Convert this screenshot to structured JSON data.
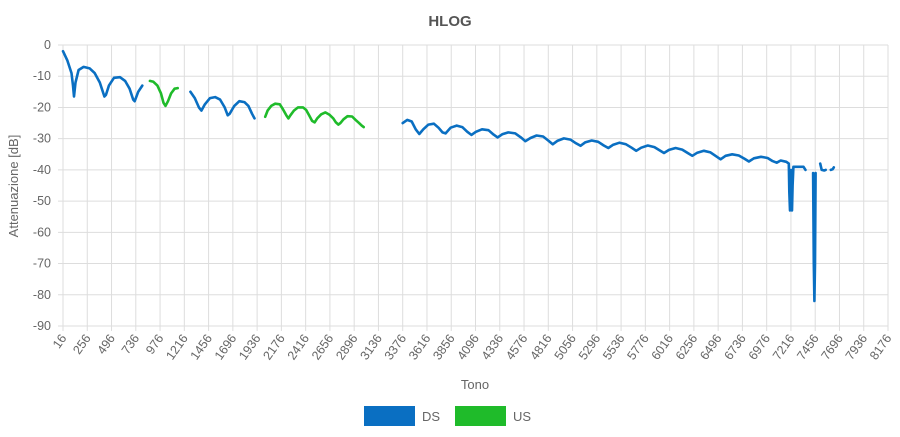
{
  "chart_data": {
    "type": "line",
    "title": "HLOG",
    "xlabel": "Tono",
    "ylabel": "Attenuazione [dB]",
    "xlim": [
      16,
      8176
    ],
    "ylim": [
      -90,
      0
    ],
    "x_ticks": [
      "16",
      "256",
      "496",
      "736",
      "976",
      "1216",
      "1456",
      "1696",
      "1936",
      "2176",
      "2416",
      "2656",
      "2896",
      "3136",
      "3376",
      "3616",
      "3856",
      "4096",
      "4336",
      "4576",
      "4816",
      "5056",
      "5296",
      "5536",
      "5776",
      "6016",
      "6256",
      "6496",
      "6736",
      "6976",
      "7216",
      "7456",
      "7696",
      "7936",
      "8176"
    ],
    "y_ticks": [
      "0",
      "-10",
      "-20",
      "-30",
      "-40",
      "-50",
      "-60",
      "-70",
      "-80",
      "-90"
    ],
    "grid": true,
    "legend_position": "bottom",
    "series": [
      {
        "name": "DS",
        "color": "#0a6fc2",
        "segments": [
          [
            [
              16,
              -2
            ],
            [
              60,
              -5
            ],
            [
              100,
              -9
            ],
            [
              115,
              -13
            ],
            [
              125,
              -16.5
            ],
            [
              140,
              -12
            ],
            [
              170,
              -8
            ],
            [
              220,
              -7
            ],
            [
              280,
              -7.5
            ],
            [
              330,
              -9
            ],
            [
              380,
              -12
            ],
            [
              425,
              -16.5
            ],
            [
              440,
              -16
            ],
            [
              470,
              -13
            ],
            [
              520,
              -10.5
            ],
            [
              580,
              -10.3
            ],
            [
              630,
              -11.5
            ],
            [
              675,
              -14
            ],
            [
              710,
              -17.5
            ],
            [
              725,
              -18
            ],
            [
              760,
              -15
            ],
            [
              800,
              -13
            ]
          ],
          [
            [
              1276,
              -15
            ],
            [
              1320,
              -17
            ],
            [
              1360,
              -20
            ],
            [
              1385,
              -21
            ],
            [
              1420,
              -19
            ],
            [
              1470,
              -17
            ],
            [
              1520,
              -16.7
            ],
            [
              1570,
              -17.5
            ],
            [
              1615,
              -20
            ],
            [
              1645,
              -22.5
            ],
            [
              1665,
              -22
            ],
            [
              1710,
              -19.5
            ],
            [
              1760,
              -18
            ],
            [
              1810,
              -18.3
            ],
            [
              1850,
              -19.5
            ],
            [
              1885,
              -22
            ],
            [
              1910,
              -23.5
            ]
          ],
          [
            [
              3376,
              -25
            ],
            [
              3420,
              -24
            ],
            [
              3465,
              -24.5
            ],
            [
              3505,
              -27
            ],
            [
              3540,
              -28.5
            ],
            [
              3580,
              -27
            ],
            [
              3630,
              -25.5
            ],
            [
              3685,
              -25.2
            ],
            [
              3730,
              -26.5
            ],
            [
              3770,
              -28
            ],
            [
              3800,
              -28.3
            ],
            [
              3850,
              -26.5
            ],
            [
              3910,
              -25.8
            ],
            [
              3965,
              -26.3
            ],
            [
              4015,
              -27.8
            ],
            [
              4055,
              -28.8
            ],
            [
              4100,
              -27.8
            ],
            [
              4160,
              -27
            ],
            [
              4225,
              -27.3
            ],
            [
              4275,
              -28.7
            ],
            [
              4315,
              -29.6
            ],
            [
              4360,
              -28.6
            ],
            [
              4420,
              -28
            ],
            [
              4490,
              -28.3
            ],
            [
              4545,
              -29.6
            ],
            [
              4590,
              -30.8
            ],
            [
              4640,
              -29.8
            ],
            [
              4700,
              -29
            ],
            [
              4765,
              -29.3
            ],
            [
              4815,
              -30.6
            ],
            [
              4860,
              -31.8
            ],
            [
              4905,
              -30.7
            ],
            [
              4970,
              -29.9
            ],
            [
              5035,
              -30.3
            ],
            [
              5090,
              -31.5
            ],
            [
              5135,
              -32.3
            ],
            [
              5180,
              -31.2
            ],
            [
              5245,
              -30.6
            ],
            [
              5310,
              -31
            ],
            [
              5365,
              -32.2
            ],
            [
              5410,
              -33
            ],
            [
              5455,
              -32
            ],
            [
              5520,
              -31.3
            ],
            [
              5585,
              -31.8
            ],
            [
              5640,
              -32.9
            ],
            [
              5685,
              -33.9
            ],
            [
              5735,
              -32.9
            ],
            [
              5800,
              -32.2
            ],
            [
              5865,
              -32.7
            ],
            [
              5920,
              -33.8
            ],
            [
              5960,
              -34.6
            ],
            [
              6010,
              -33.6
            ],
            [
              6075,
              -33
            ],
            [
              6140,
              -33.5
            ],
            [
              6195,
              -34.6
            ],
            [
              6240,
              -35.5
            ],
            [
              6290,
              -34.5
            ],
            [
              6355,
              -33.9
            ],
            [
              6420,
              -34.4
            ],
            [
              6475,
              -35.6
            ],
            [
              6520,
              -36.6
            ],
            [
              6570,
              -35.5
            ],
            [
              6635,
              -35
            ],
            [
              6700,
              -35.4
            ],
            [
              6755,
              -36.4
            ],
            [
              6800,
              -37.3
            ],
            [
              6850,
              -36.3
            ],
            [
              6920,
              -35.8
            ],
            [
              6985,
              -36.2
            ],
            [
              7035,
              -37.2
            ],
            [
              7075,
              -37.7
            ],
            [
              7115,
              -37
            ],
            [
              7170,
              -37.4
            ],
            [
              7195,
              -38
            ],
            [
              7200,
              -47
            ],
            [
              7207,
              -53
            ],
            [
              7213,
              -48
            ],
            [
              7218,
              -40
            ],
            [
              7222,
              -50
            ],
            [
              7226,
              -53
            ],
            [
              7232,
              -45
            ],
            [
              7240,
              -39
            ],
            [
              7300,
              -39
            ],
            [
              7340,
              -39
            ],
            [
              7360,
              -40
            ]
          ],
          [
            [
              7435,
              -41
            ],
            [
              7442,
              -70
            ],
            [
              7448,
              -82
            ],
            [
              7454,
              -70
            ],
            [
              7460,
              -41
            ]
          ],
          [
            [
              7505,
              -38
            ],
            [
              7520,
              -40
            ],
            [
              7545,
              -40.2
            ],
            [
              7560,
              -40
            ]
          ],
          [
            [
              7610,
              -40
            ],
            [
              7628,
              -39.8
            ],
            [
              7640,
              -39.2
            ]
          ]
        ]
      },
      {
        "name": "US",
        "color": "#1fbb2a",
        "segments": [
          [
            [
              876,
              -11.5
            ],
            [
              910,
              -11.8
            ],
            [
              950,
              -13
            ],
            [
              985,
              -15.5
            ],
            [
              1010,
              -18.5
            ],
            [
              1030,
              -19.5
            ],
            [
              1055,
              -18
            ],
            [
              1085,
              -15.5
            ],
            [
              1120,
              -14
            ],
            [
              1150,
              -13.8
            ]
          ],
          [
            [
              2016,
              -23
            ],
            [
              2040,
              -21
            ],
            [
              2075,
              -19.5
            ],
            [
              2115,
              -18.8
            ],
            [
              2160,
              -19
            ],
            [
              2190,
              -20.5
            ],
            [
              2225,
              -22.5
            ],
            [
              2245,
              -23.5
            ],
            [
              2265,
              -22.5
            ],
            [
              2300,
              -21
            ],
            [
              2340,
              -20
            ],
            [
              2390,
              -20
            ],
            [
              2420,
              -20.8
            ],
            [
              2450,
              -22.5
            ],
            [
              2480,
              -24.3
            ],
            [
              2505,
              -24.8
            ],
            [
              2530,
              -23.5
            ],
            [
              2570,
              -22.2
            ],
            [
              2610,
              -21.6
            ],
            [
              2650,
              -22.3
            ],
            [
              2690,
              -23.5
            ],
            [
              2715,
              -24.8
            ],
            [
              2740,
              -25.5
            ],
            [
              2760,
              -25
            ],
            [
              2790,
              -23.8
            ],
            [
              2830,
              -22.8
            ],
            [
              2875,
              -22.9
            ],
            [
              2910,
              -24
            ],
            [
              2945,
              -25
            ],
            [
              2970,
              -25.8
            ],
            [
              2990,
              -26.3
            ]
          ]
        ]
      }
    ]
  }
}
